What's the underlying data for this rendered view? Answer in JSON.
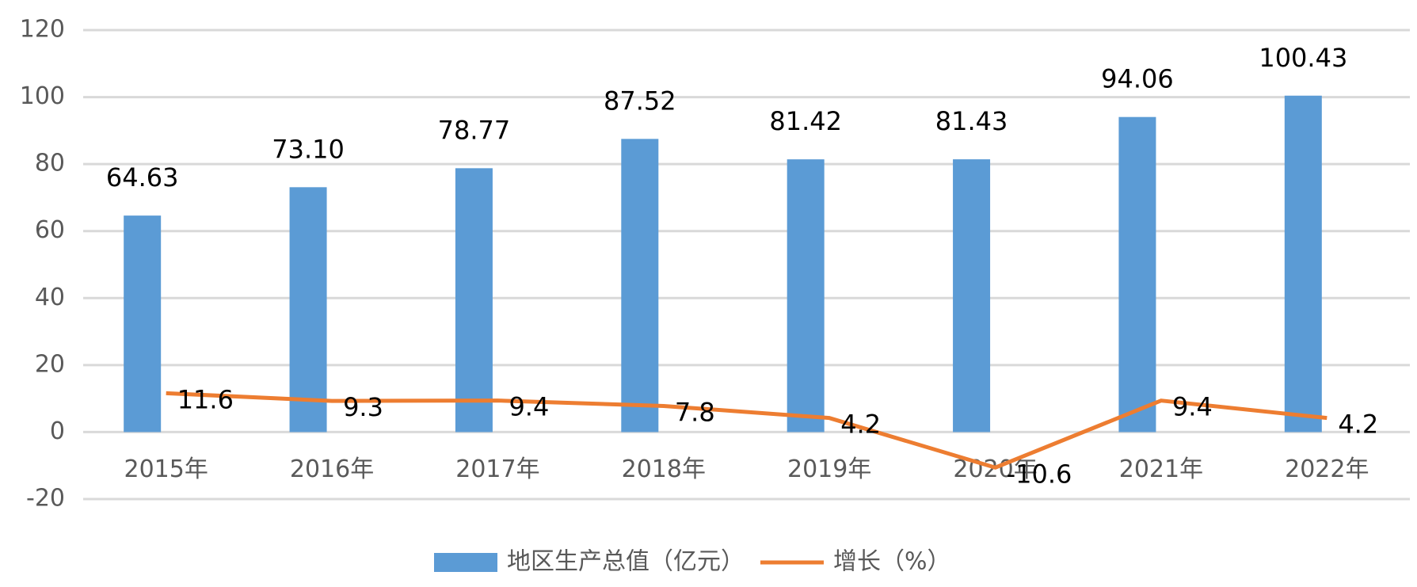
{
  "chart_data": {
    "type": "bar-line",
    "categories": [
      "2015年",
      "2016年",
      "2017年",
      "2018年",
      "2019年",
      "2020年",
      "2021年",
      "2022年"
    ],
    "series": [
      {
        "name": "地区生产总值（亿元）",
        "type": "bar",
        "color": "#5b9bd5",
        "values": [
          64.63,
          73.1,
          78.77,
          87.52,
          81.42,
          81.43,
          94.06,
          100.43
        ],
        "value_labels": [
          "64.63",
          "73.10",
          "78.77",
          "87.52",
          "81.42",
          "81.43",
          "94.06",
          "100.43"
        ]
      },
      {
        "name": "增长（%）",
        "type": "line",
        "color": "#ed7d31",
        "values": [
          11.6,
          9.3,
          9.4,
          7.8,
          4.2,
          -10.6,
          9.4,
          4.2
        ]
      }
    ],
    "ylim": [
      -20,
      120
    ],
    "yticks": [
      -20,
      0,
      20,
      40,
      60,
      80,
      100,
      120
    ],
    "grid": true,
    "legend": "bottom"
  }
}
